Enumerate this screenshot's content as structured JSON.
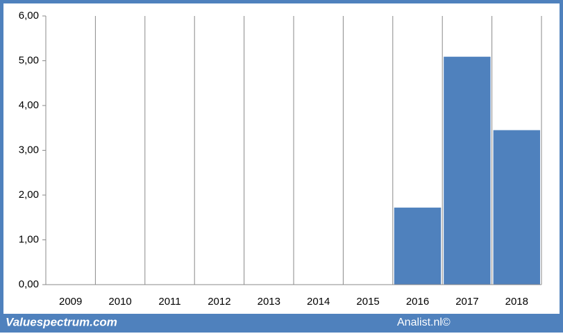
{
  "chart_data": {
    "type": "bar",
    "categories": [
      "2009",
      "2010",
      "2011",
      "2012",
      "2013",
      "2014",
      "2015",
      "2016",
      "2017",
      "2018"
    ],
    "values": [
      null,
      null,
      null,
      null,
      null,
      null,
      null,
      1.72,
      5.09,
      3.45
    ],
    "color": "#4f81bd",
    "ylim": [
      0,
      6
    ],
    "yticks": [
      {
        "value": 0,
        "label": "0,00"
      },
      {
        "value": 1,
        "label": "1,00"
      },
      {
        "value": 2,
        "label": "2,00"
      },
      {
        "value": 3,
        "label": "3,00"
      },
      {
        "value": 4,
        "label": "4,00"
      },
      {
        "value": 5,
        "label": "5,00"
      },
      {
        "value": 6,
        "label": "6,00"
      }
    ],
    "grid": true
  },
  "footer": {
    "left": "Valuespectrum.com",
    "right": "Analist.nl©"
  }
}
